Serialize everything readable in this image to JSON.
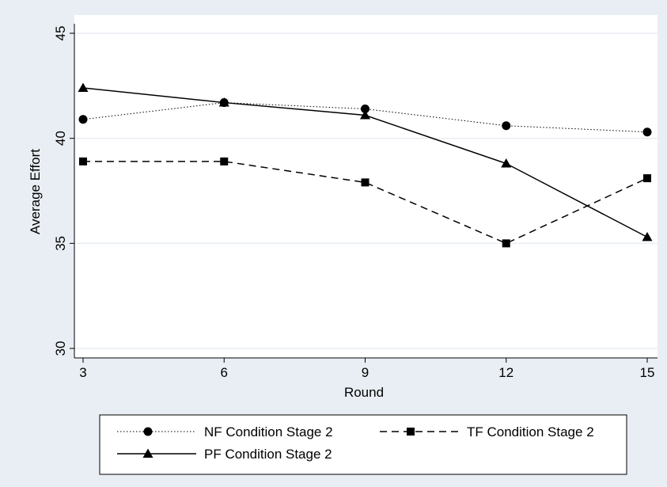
{
  "chart_data": {
    "type": "line",
    "title": "",
    "xlabel": "Round",
    "ylabel": "Average Effort",
    "x": [
      3,
      6,
      9,
      12,
      15
    ],
    "xlim": [
      3,
      15
    ],
    "ylim": [
      30,
      45
    ],
    "xticks": [
      "3",
      "6",
      "9",
      "12",
      "15"
    ],
    "yticks": [
      "30",
      "35",
      "40",
      "45"
    ],
    "grid": "horizontal",
    "legend_position": "bottom",
    "series": [
      {
        "name": "NF Condition Stage 2",
        "marker": "circle",
        "line": "dotted",
        "values": [
          40.9,
          41.7,
          41.4,
          40.6,
          40.3
        ]
      },
      {
        "name": "TF Condition Stage 2",
        "marker": "square",
        "line": "dashed",
        "values": [
          38.9,
          38.9,
          37.9,
          35.0,
          38.1
        ]
      },
      {
        "name": "PF Condition Stage 2",
        "marker": "triangle",
        "line": "solid",
        "values": [
          42.4,
          41.7,
          41.1,
          38.8,
          35.3
        ]
      }
    ],
    "colors": {
      "outer_background": "#e9eef4",
      "plot_background": "#ffffff",
      "grid": "#e9eef4",
      "line": "#000000"
    }
  }
}
